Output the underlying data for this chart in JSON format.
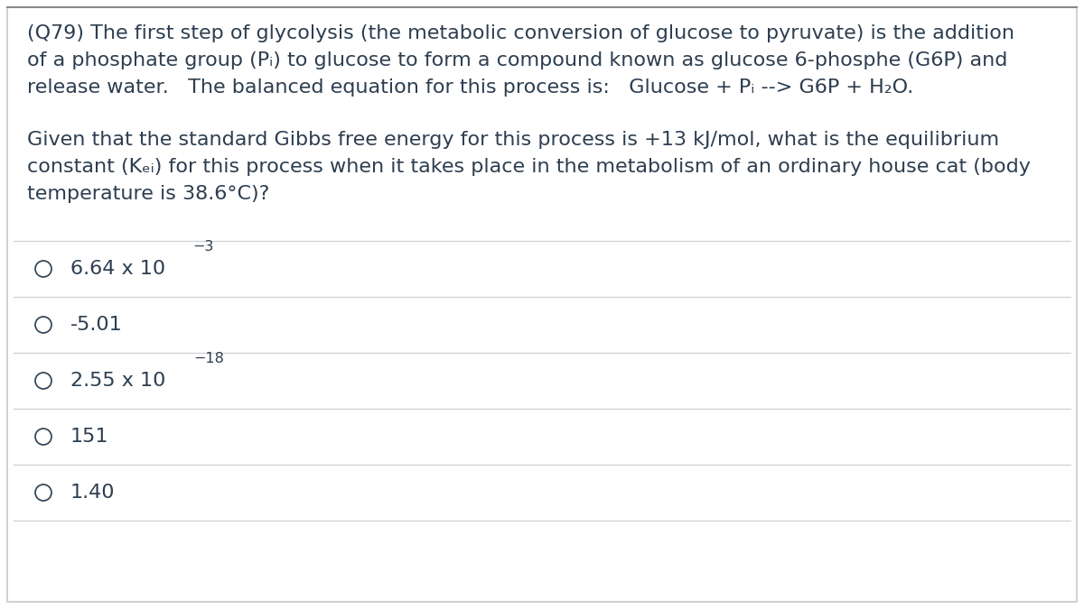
{
  "background_color": "#ffffff",
  "border_color": "#c8c8c8",
  "text_color": "#2d3e50",
  "line_color": "#d0d0d0",
  "font_size_question": 16,
  "font_size_choice": 16,
  "question_para1": [
    "(Q79) The first step of glycolysis (the metabolic conversion of glucose to pyruvate) is the addition",
    "of a phosphate group (Pᵢ) to glucose to form a compound known as glucose 6-phosphe (G6P) and",
    "release water.   The balanced equation for this process is:   Glucose + Pᵢ --> G6P + H₂O."
  ],
  "question_para2": [
    "Given that the standard Gibbs free energy for this process is +13 kJ/mol, what is the equilibrium",
    "constant (Kₑᵢ) for this process when it takes place in the metabolism of an ordinary house cat (body",
    "temperature is 38.6°C)?"
  ],
  "choices": [
    {
      "main": "6.64 x 10",
      "sup": "−3"
    },
    {
      "main": "-5.01",
      "sup": ""
    },
    {
      "main": "2.55 x 10",
      "sup": "−18"
    },
    {
      "main": "151",
      "sup": ""
    },
    {
      "main": "1.40",
      "sup": ""
    }
  ]
}
